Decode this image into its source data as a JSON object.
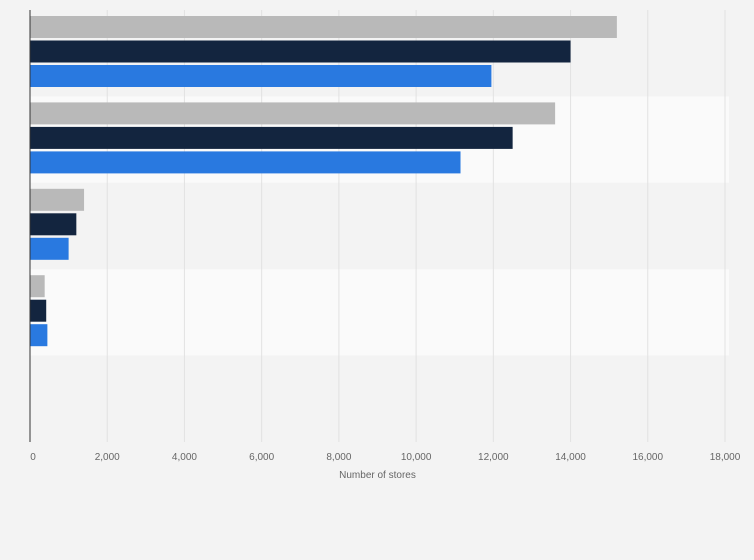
{
  "chart_data": {
    "type": "bar",
    "orientation": "horizontal",
    "title": "",
    "xlabel": "Number of stores",
    "ylabel": "",
    "xlim": [
      0,
      18000
    ],
    "xticks": [
      0,
      2000,
      4000,
      6000,
      8000,
      10000,
      12000,
      14000,
      16000,
      18000
    ],
    "xtick_labels": [
      "0",
      "2,000",
      "4,000",
      "6,000",
      "8,000",
      "10,000",
      "12,000",
      "14,000",
      "16,000",
      "18,000"
    ],
    "grid": true,
    "categories": [
      "",
      "",
      "",
      "",
      ""
    ],
    "series": [
      {
        "name": "",
        "color": "#b9b9b9",
        "values": [
          15200,
          13600,
          1400,
          380,
          null
        ]
      },
      {
        "name": "",
        "color": "#13253f",
        "values": [
          14000,
          12500,
          1200,
          420,
          null
        ]
      },
      {
        "name": "",
        "color": "#2979e0",
        "values": [
          11950,
          11150,
          1000,
          450,
          null
        ]
      }
    ]
  }
}
